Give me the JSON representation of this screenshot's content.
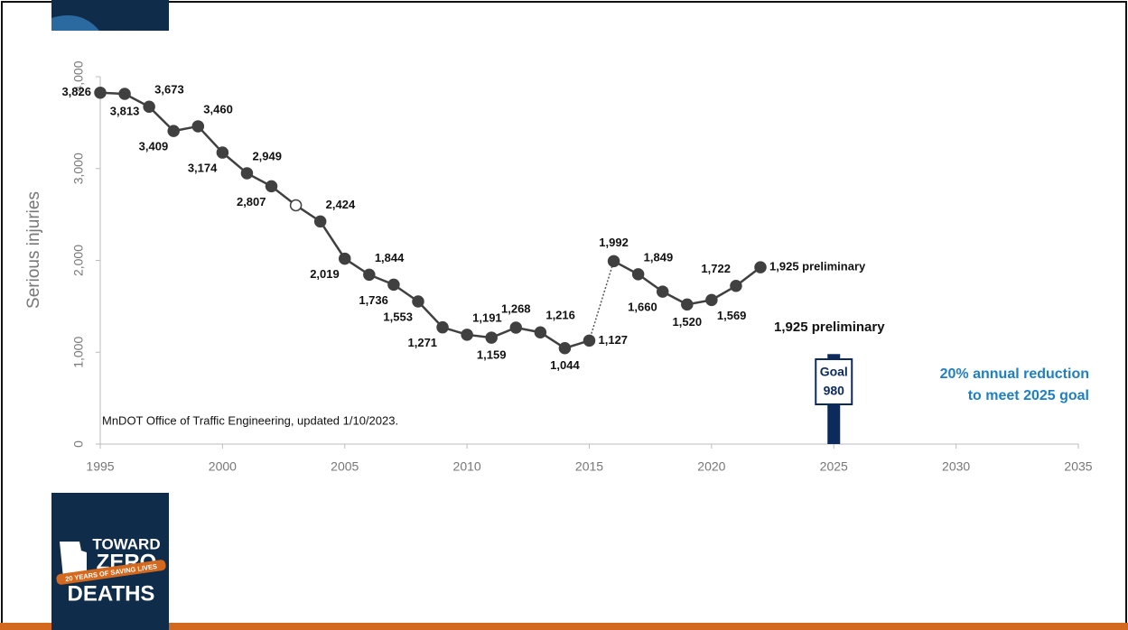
{
  "chart_data": {
    "type": "line",
    "y_label": "Serious injuries",
    "x": [
      1995,
      1996,
      1997,
      1998,
      1999,
      2000,
      2001,
      2002,
      2003,
      2004,
      2005,
      2006,
      2007,
      2008,
      2009,
      2010,
      2011,
      2012,
      2013,
      2014,
      2015,
      2016,
      2017,
      2018,
      2019,
      2020,
      2021,
      2022
    ],
    "series": [
      {
        "name": "Serious injuries",
        "color": "#404040",
        "values": [
          3826,
          3813,
          3673,
          3409,
          3460,
          3174,
          2949,
          2807,
          2600,
          2424,
          2019,
          1844,
          1736,
          1553,
          1271,
          1191,
          1159,
          1268,
          1216,
          1044,
          1127,
          1992,
          1849,
          1660,
          1520,
          1569,
          1722,
          1925
        ],
        "value_labels": [
          "3,826",
          "3,813",
          "3,673",
          "3,409",
          "3,460",
          "3,174",
          "2,949",
          "2,807",
          null,
          "2,424",
          "2,019",
          "1,844",
          "1,736",
          "1,553",
          "1,271",
          "1,191",
          "1,159",
          "1,268",
          "1,216",
          "1,044",
          "1,127",
          "1,992",
          "1,849",
          "1,660",
          "1,520",
          "1,569",
          "1,722",
          "1,925 preliminary"
        ]
      }
    ],
    "hollow_markers": [
      2003
    ],
    "dotted_from_to": [
      2015,
      2016
    ],
    "goal": {
      "x": 2025,
      "value": 980,
      "label": "Goal",
      "color": "#0d2a5c"
    },
    "xlim": [
      1995,
      2035
    ],
    "xticks": [
      1995,
      2000,
      2005,
      2010,
      2015,
      2020,
      2025,
      2030,
      2035
    ],
    "ylim": [
      0,
      4000
    ],
    "yticks": [
      0,
      {
        "value": 1000,
        "label": "1,000"
      },
      {
        "value": 2000,
        "label": "2,000"
      },
      {
        "value": 3000,
        "label": "3,000"
      },
      {
        "value": 4000,
        "label": "4,000"
      }
    ],
    "annotations": [
      "MnDOT Office of Traffic Engineering, updated 1/10/2023.",
      "1,925 preliminary",
      "20% annual reduction",
      "to meet 2025 goal"
    ]
  },
  "logo": {
    "line1": "TOWARD",
    "line2": "ZERO",
    "banner": "20 YEARS OF SAVING LIVES",
    "line3": "DEATHS"
  }
}
